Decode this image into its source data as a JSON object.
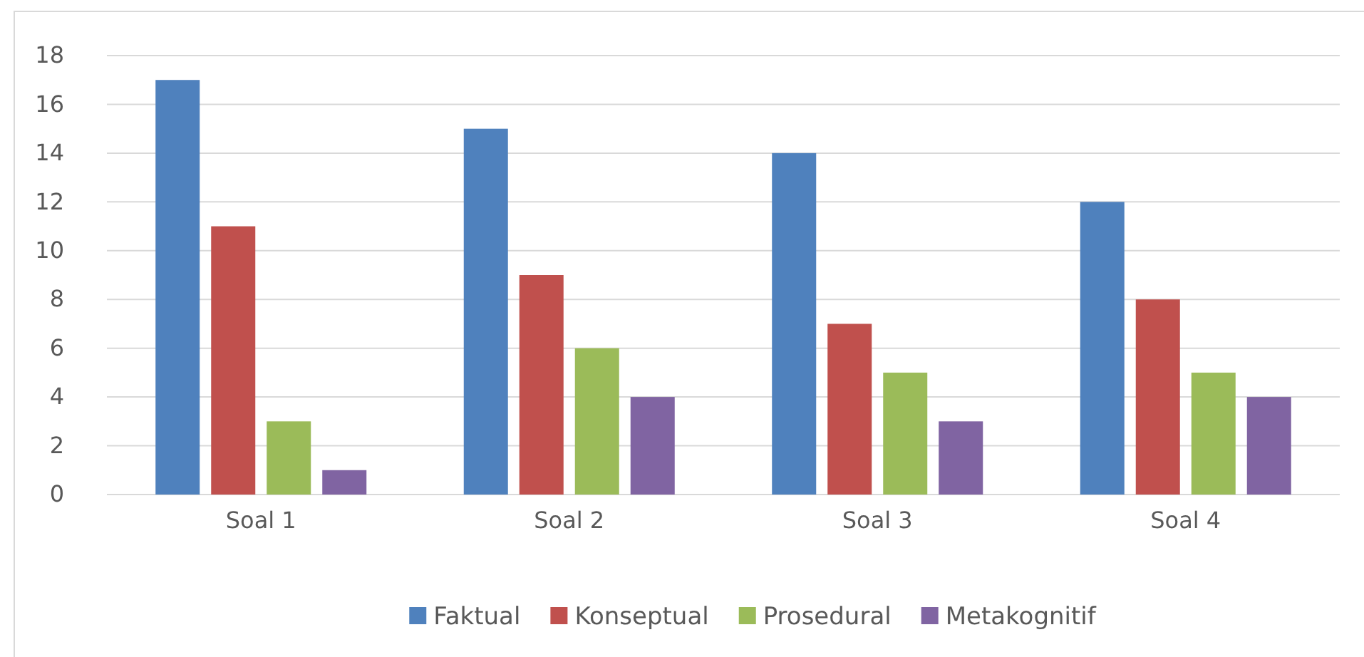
{
  "chart_data": {
    "type": "bar",
    "categories": [
      "Soal 1",
      "Soal 2",
      "Soal 3",
      "Soal 4"
    ],
    "series": [
      {
        "name": "Faktual",
        "color": "#4f81bd",
        "values": [
          17,
          15,
          14,
          12
        ]
      },
      {
        "name": "Konseptual",
        "color": "#c0504d",
        "values": [
          11,
          9,
          7,
          8
        ]
      },
      {
        "name": "Prosedural",
        "color": "#9bbb59",
        "values": [
          3,
          6,
          5,
          5
        ]
      },
      {
        "name": "Metakognitif",
        "color": "#8064a2",
        "values": [
          1,
          4,
          3,
          4
        ]
      }
    ],
    "ylim": [
      0,
      18
    ],
    "yticks": [
      0,
      2,
      4,
      6,
      8,
      10,
      12,
      14,
      16,
      18
    ],
    "grid": "y",
    "legend": "bottom"
  }
}
